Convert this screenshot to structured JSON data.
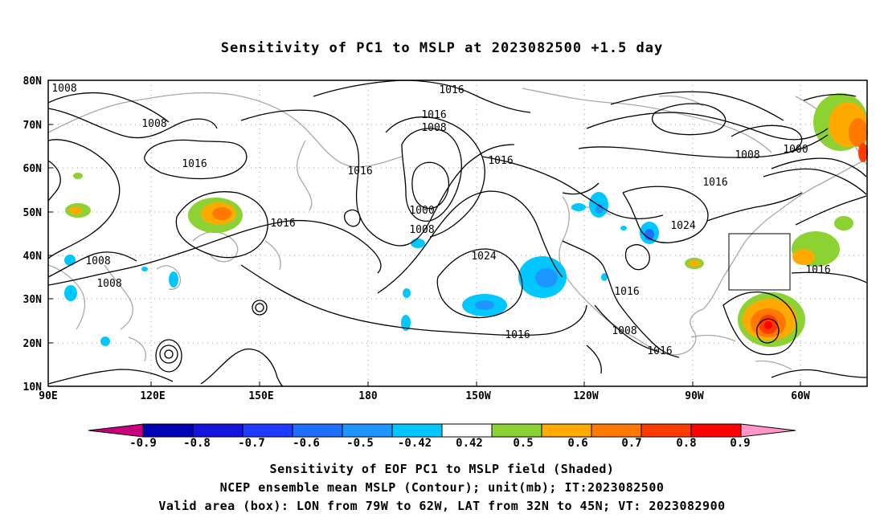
{
  "title": "Sensitivity of PC1 to MSLP at 2023082500 +1.5 day",
  "lat_labels": [
    "80N",
    "70N",
    "60N",
    "50N",
    "40N",
    "30N",
    "20N",
    "10N"
  ],
  "lon_labels": [
    "90E",
    "120E",
    "150E",
    "180",
    "150W",
    "120W",
    "90W",
    "60W"
  ],
  "contour_labels": [
    {
      "text": "1008"
    },
    {
      "text": "1008"
    },
    {
      "text": "1016"
    },
    {
      "text": "1016"
    },
    {
      "text": "1016"
    },
    {
      "text": "1016"
    },
    {
      "text": "1008"
    },
    {
      "text": "1016"
    },
    {
      "text": "1000"
    },
    {
      "text": "1008"
    },
    {
      "text": "1024"
    },
    {
      "text": "1016"
    },
    {
      "text": "1008"
    },
    {
      "text": "1000"
    },
    {
      "text": "1016"
    },
    {
      "text": "1024"
    },
    {
      "text": "1008"
    },
    {
      "text": "1008"
    },
    {
      "text": "1016"
    },
    {
      "text": "1016"
    },
    {
      "text": "1008"
    },
    {
      "text": "1016"
    },
    {
      "text": "1016"
    }
  ],
  "colorbar": {
    "labels": [
      "-0.9",
      "-0.8",
      "-0.7",
      "-0.6",
      "-0.5",
      "-0.42",
      "0.42",
      "0.5",
      "0.6",
      "0.7",
      "0.8",
      "0.9"
    ],
    "colors": [
      "#c8007e",
      "#0000b4",
      "#1414dc",
      "#1e3cff",
      "#1e6eff",
      "#1e96ff",
      "#00c8ff",
      "#ffffff",
      "#8cd232",
      "#ffaa00",
      "#ff7800",
      "#ff3c00",
      "#ff0000",
      "#ff96c8"
    ]
  },
  "validity_box": {
    "lon_min": -79,
    "lon_max": -62,
    "lat_min": 32,
    "lat_max": 45
  },
  "captions": {
    "line1": "Sensitivity of EOF PC1 to MSLP field (Shaded)",
    "line2": "NCEP ensemble mean MSLP (Contour); unit(mb); IT:2023082500",
    "line3": "Valid area (box): LON from 79W to 62W, LAT from 32N to 45N; VT: 2023082900"
  }
}
